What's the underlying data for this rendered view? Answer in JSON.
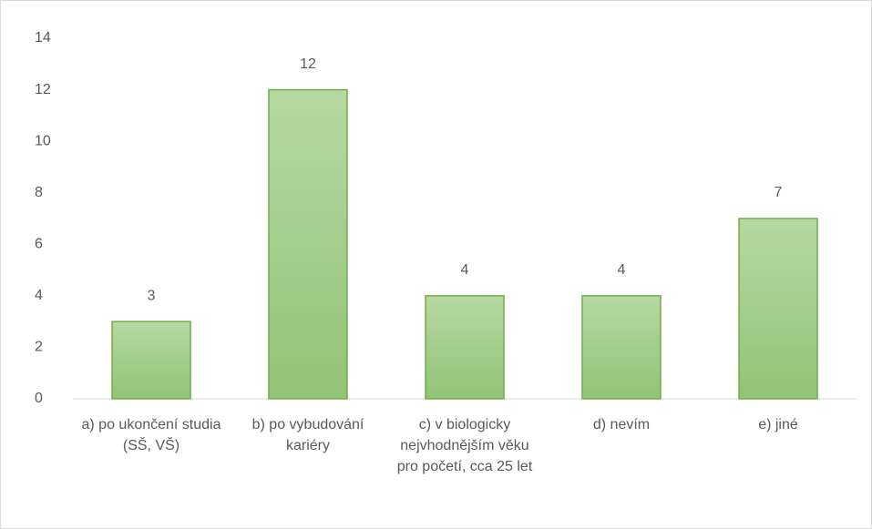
{
  "chart_data": {
    "type": "bar",
    "categories": [
      "a) po ukončení studia (SŠ, VŠ)",
      "b) po vybudování kariéry",
      "c) v biologicky nejvhodnějším věku pro početí, cca 25 let",
      "d) nevím",
      "e) jiné"
    ],
    "values": [
      3,
      12,
      4,
      4,
      7
    ],
    "color": "#70ad47",
    "ylim": [
      0,
      14
    ],
    "yticks": [
      0,
      2,
      4,
      6,
      8,
      10,
      12,
      14
    ],
    "grid": false
  }
}
